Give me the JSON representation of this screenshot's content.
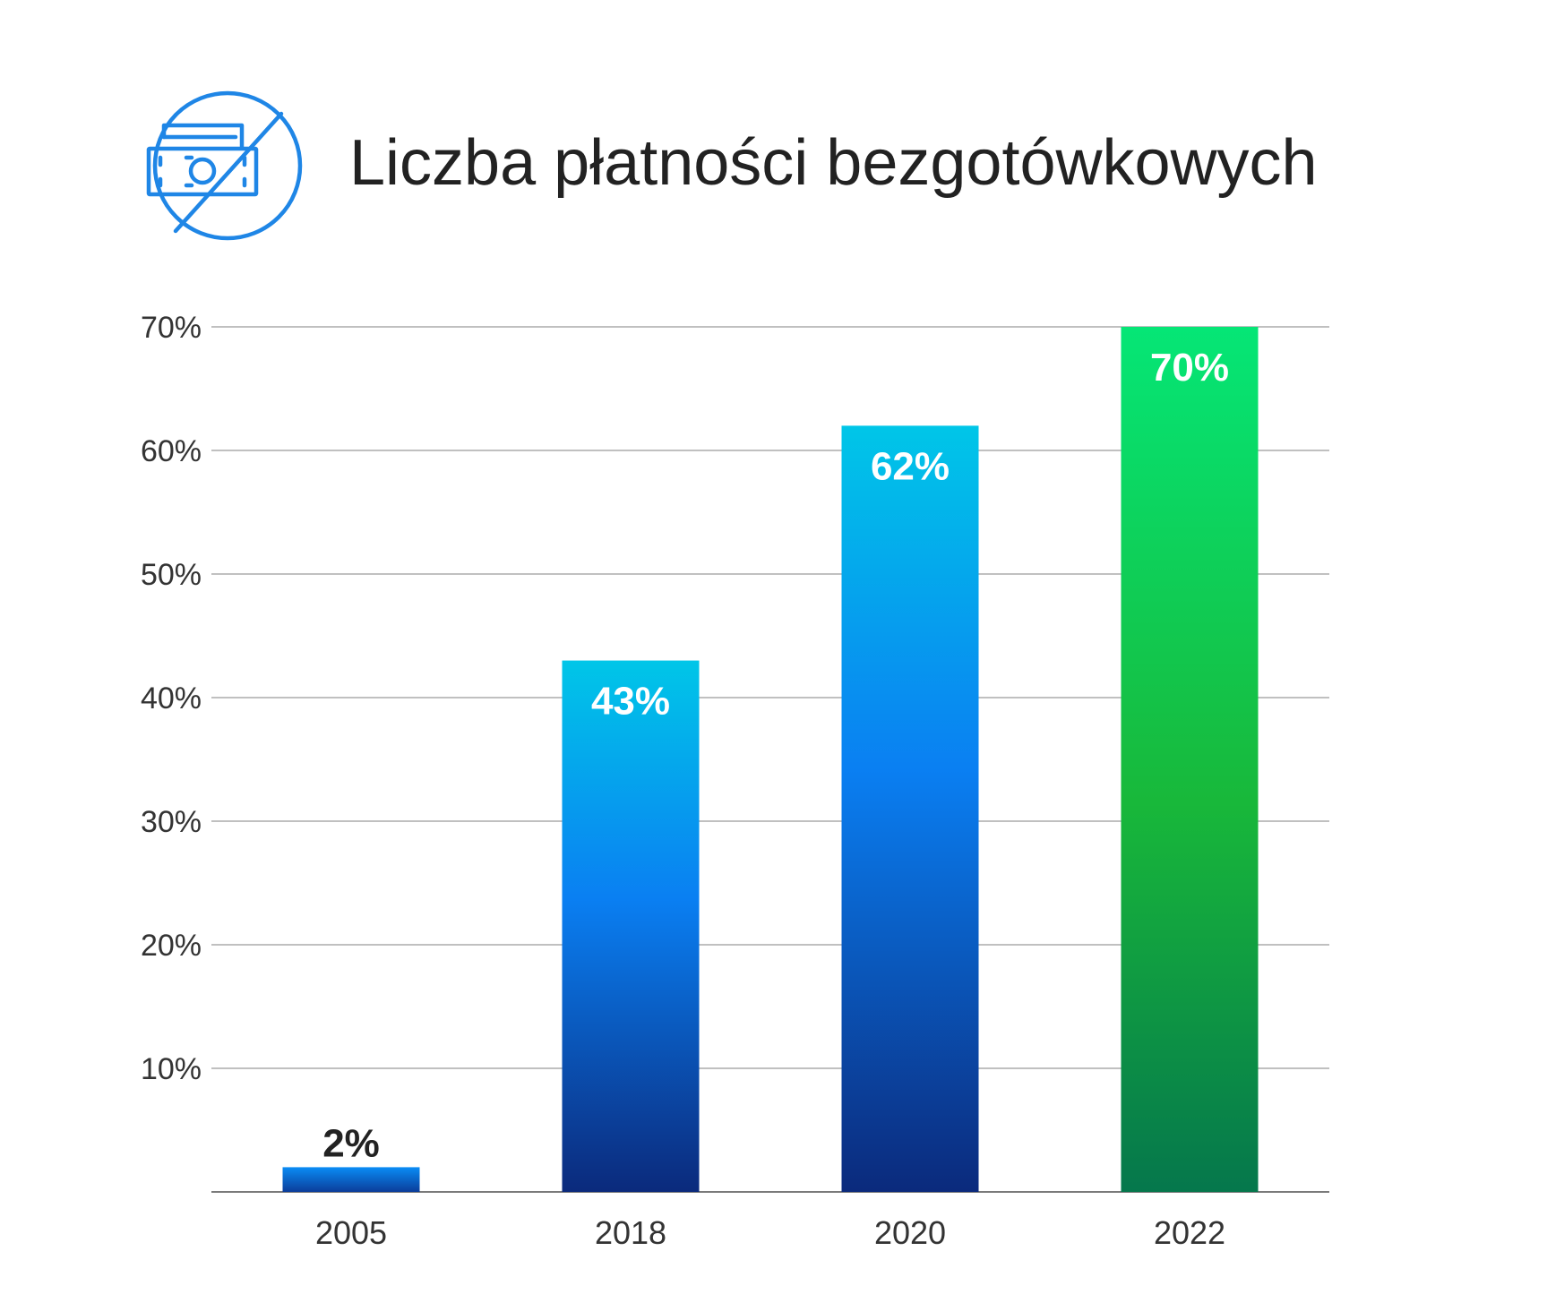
{
  "header": {
    "title": "Liczba płatności bezgotówkowych",
    "icon": "no-cash-icon",
    "icon_color": "#1f86e6"
  },
  "chart_data": {
    "type": "bar",
    "title": "Liczba płatności bezgotówkowych",
    "xlabel": "",
    "ylabel": "",
    "categories": [
      "2005",
      "2018",
      "2020",
      "2022"
    ],
    "values": [
      2,
      43,
      62,
      70
    ],
    "value_labels": [
      "2%",
      "43%",
      "62%",
      "70%"
    ],
    "ylim": [
      0,
      70
    ],
    "yticks": [
      10,
      20,
      30,
      40,
      50,
      60,
      70
    ],
    "ytick_labels": [
      "10%",
      "20%",
      "30%",
      "40%",
      "50%",
      "60%",
      "70%"
    ],
    "grid": true,
    "legend": "none",
    "colors": {
      "blue_bar_top": "#00c6e8",
      "blue_bar_mid": "#0a7ff2",
      "blue_bar_bottom": "#0b2a7c",
      "green_bar_top": "#05e676",
      "green_bar_mid": "#18b83a",
      "green_bar_bottom": "#05774c",
      "label_inside": "#ffffff",
      "label_outside": "#222222"
    }
  }
}
